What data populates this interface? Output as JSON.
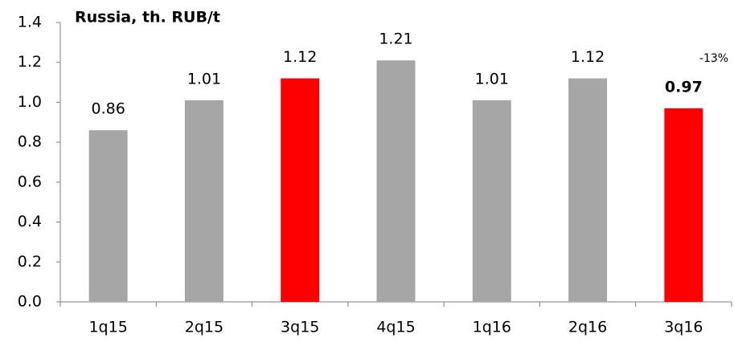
{
  "chart_data": {
    "type": "bar",
    "title": "Russia, th. RUB/t",
    "categories": [
      "1q15",
      "2q15",
      "3q15",
      "4q15",
      "1q16",
      "2q16",
      "3q16"
    ],
    "values": [
      0.86,
      1.01,
      1.12,
      1.21,
      1.01,
      1.12,
      0.97
    ],
    "colors": [
      "#a6a6a6",
      "#a6a6a6",
      "#ff0000",
      "#a6a6a6",
      "#a6a6a6",
      "#a6a6a6",
      "#ff0000"
    ],
    "annotation": "-13%",
    "ylim": [
      0,
      1.4
    ],
    "yticks": [
      {
        "value": 0,
        "label": "0.0"
      },
      0.2,
      0.4,
      0.6,
      0.8,
      {
        "value": 1,
        "label": "1.0"
      },
      1.2,
      1.4
    ],
    "grid": false
  }
}
